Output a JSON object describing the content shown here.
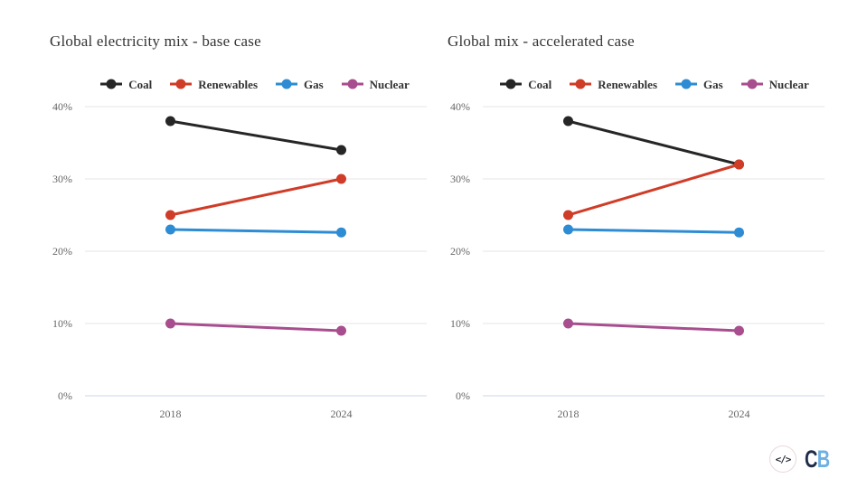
{
  "charts": [
    {
      "title": "Global electricity mix - base case",
      "chart_data": {
        "type": "line",
        "categories": [
          "2018",
          "2024"
        ],
        "series": [
          {
            "name": "Coal",
            "color": "#262626",
            "values": [
              38,
              34
            ]
          },
          {
            "name": "Renewables",
            "color": "#cf3c28",
            "values": [
              25,
              30
            ]
          },
          {
            "name": "Gas",
            "color": "#2d8cd3",
            "values": [
              23,
              22.6
            ]
          },
          {
            "name": "Nuclear",
            "color": "#a84e8f",
            "values": [
              10,
              9
            ]
          }
        ],
        "yticks": [
          {
            "value": 0,
            "label": "0%"
          },
          {
            "value": 10,
            "label": "10%"
          },
          {
            "value": 20,
            "label": "20%"
          },
          {
            "value": 30,
            "label": "30%"
          },
          {
            "value": 40,
            "label": "40%"
          }
        ],
        "ylim": [
          0,
          40
        ],
        "grid": true,
        "legend_position": "top"
      }
    },
    {
      "title": "Global mix - accelerated case",
      "chart_data": {
        "type": "line",
        "categories": [
          "2018",
          "2024"
        ],
        "series": [
          {
            "name": "Coal",
            "color": "#262626",
            "values": [
              38,
              32
            ]
          },
          {
            "name": "Renewables",
            "color": "#cf3c28",
            "values": [
              25,
              32
            ]
          },
          {
            "name": "Gas",
            "color": "#2d8cd3",
            "values": [
              23,
              22.6
            ]
          },
          {
            "name": "Nuclear",
            "color": "#a84e8f",
            "values": [
              10,
              9
            ]
          }
        ],
        "yticks": [
          {
            "value": 0,
            "label": "0%"
          },
          {
            "value": 10,
            "label": "10%"
          },
          {
            "value": 20,
            "label": "20%"
          },
          {
            "value": 30,
            "label": "30%"
          },
          {
            "value": 40,
            "label": "40%"
          }
        ],
        "ylim": [
          0,
          40
        ],
        "grid": true,
        "legend_position": "top"
      }
    }
  ],
  "footer": {
    "logo_icon": "</>",
    "logo_c": "C",
    "logo_b": "B",
    "logo_c_color": "#1e2c49",
    "logo_b_color": "#6cb0e4"
  },
  "style_colors": {
    "gridline": "#e6e6e6",
    "axis_line": "#ccd6eb",
    "tick_label": "#666666",
    "title": "#333333"
  }
}
